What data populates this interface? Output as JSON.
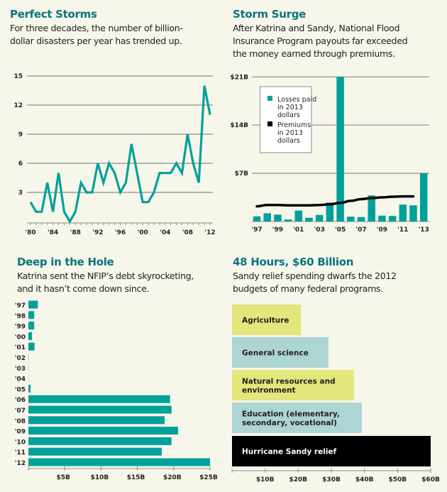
{
  "panels": {
    "perfect_storms": {
      "title": "Perfect Storms",
      "subtitle_lines": [
        "For three decades, the number of billion-",
        "dollar disasters per year has trended up."
      ]
    },
    "storm_surge": {
      "title": "Storm Surge",
      "subtitle_lines": [
        "After Katrina and Sandy, National Flood",
        "Insurance Program payouts far exceeded",
        "the money earned through premiums."
      ]
    },
    "deep_in_hole": {
      "title": "Deep in the Hole",
      "subtitle_lines": [
        "Katrina sent the NFIP’s debt skyrocketing,",
        "and it hasn’t come down since."
      ]
    },
    "sandy": {
      "title": "48 Hours, $60 Billion",
      "subtitle_lines": [
        "Sandy relief spending dwarfs the 2012",
        "budgets of many federal programs."
      ]
    }
  },
  "colors": {
    "teal": "#00a19a",
    "title": "#0b7480",
    "grid": "#8f8d84",
    "black": "#000000",
    "yellow": "#e3e67a",
    "lightblue": "#acd5d4",
    "background": "#f6f6ea"
  },
  "chart_data": [
    {
      "type": "line",
      "title": "Perfect Storms",
      "xlabel": "",
      "ylabel": "Billion-dollar disasters per year",
      "x": [
        1980,
        1981,
        1982,
        1983,
        1984,
        1985,
        1986,
        1987,
        1988,
        1989,
        1990,
        1991,
        1992,
        1993,
        1994,
        1995,
        1996,
        1997,
        1998,
        1999,
        2000,
        2001,
        2002,
        2003,
        2004,
        2005,
        2006,
        2007,
        2008,
        2009,
        2010,
        2011,
        2012
      ],
      "series": [
        {
          "name": "Billion-dollar disasters",
          "values": [
            2,
            1,
            1,
            4,
            1,
            5,
            1,
            0,
            1,
            4,
            3,
            3,
            6,
            4,
            6,
            5,
            3,
            4,
            8,
            5,
            2,
            2,
            3,
            5,
            5,
            5,
            6,
            5,
            9,
            6,
            4,
            14,
            11
          ]
        }
      ],
      "xticks": [
        1980,
        1984,
        1988,
        1992,
        1996,
        2000,
        2004,
        2008,
        2012
      ],
      "xtick_labels": [
        "'80",
        "'84",
        "'88",
        "'92",
        "'96",
        "'00",
        "'04",
        "'08",
        "'12"
      ],
      "yticks": [
        3,
        6,
        9,
        12,
        15
      ],
      "ytick_labels": [
        "3",
        "6",
        "9",
        "12",
        "15"
      ],
      "ylim": [
        0,
        15
      ],
      "grid": true
    },
    {
      "type": "bar",
      "title": "Storm Surge",
      "categories": [
        "1997",
        "1998",
        "1999",
        "2000",
        "2001",
        "2002",
        "2003",
        "2004",
        "2005",
        "2006",
        "2007",
        "2008",
        "2009",
        "2010",
        "2011",
        "2012",
        "2013"
      ],
      "xtick_labels": [
        "'97",
        "'99",
        "'01",
        "'03",
        "'05",
        "'07",
        "'09",
        "'11",
        "'13"
      ],
      "xtick_categories": [
        "1997",
        "1999",
        "2001",
        "2003",
        "2005",
        "2007",
        "2009",
        "2011",
        "2013"
      ],
      "series": [
        {
          "name": "Losses paid in 2013 dollars",
          "kind": "bar",
          "values": [
            0.75,
            1.2,
            1.0,
            0.3,
            1.6,
            0.55,
            0.95,
            2.75,
            21.0,
            0.7,
            0.65,
            3.8,
            0.85,
            0.8,
            2.45,
            2.35,
            7.0
          ]
        },
        {
          "name": "Premiums in 2013 dollars",
          "kind": "line",
          "values": [
            2.2,
            2.4,
            2.4,
            2.35,
            2.35,
            2.35,
            2.4,
            2.5,
            2.7,
            3.0,
            3.25,
            3.4,
            3.5,
            3.6,
            3.65,
            3.65,
            null
          ]
        }
      ],
      "legend": {
        "placement": "top-left",
        "entries": [
          [
            "Losses paid",
            "in 2013",
            "dollars"
          ],
          [
            "Premiums",
            "in 2013",
            "dollars"
          ]
        ]
      },
      "unit": "billions USD",
      "yticks": [
        7,
        14,
        21
      ],
      "ytick_labels": [
        "$7B",
        "$14B",
        "$21B"
      ],
      "ylim": [
        0,
        21
      ],
      "grid": true
    },
    {
      "type": "bar",
      "orientation": "horizontal",
      "title": "Deep in the Hole",
      "categories": [
        "'97",
        "'98",
        "'99",
        "'00",
        "'01",
        "'02",
        "'03",
        "'04",
        "'05",
        "'06",
        "'07",
        "'08",
        "'09",
        "'10",
        "'11",
        "'12"
      ],
      "values": [
        1.3,
        0.8,
        0.8,
        0.5,
        0.85,
        0.05,
        0,
        0,
        0.3,
        19.5,
        19.7,
        18.75,
        20.6,
        19.7,
        18.35,
        25.0
      ],
      "unit": "billions USD",
      "xticks": [
        5,
        10,
        15,
        20,
        25
      ],
      "xtick_labels": [
        "$5B",
        "$10B",
        "$15B",
        "$20B",
        "$25B"
      ],
      "xlim": [
        0,
        25
      ],
      "grid": false
    },
    {
      "type": "bar",
      "orientation": "horizontal",
      "title": "48 Hours, $60 Billion",
      "categories": [
        "Agriculture",
        "General science",
        "Natural resources and environment",
        "Education (elementary, secondary, vocational)",
        "Hurricane Sandy relief"
      ],
      "category_lines": [
        [
          "Agriculture"
        ],
        [
          "General science"
        ],
        [
          "Natural resources and",
          "environment"
        ],
        [
          "Education (elementary,",
          "secondary, vocational)"
        ],
        [
          "Hurricane Sandy relief"
        ]
      ],
      "values": [
        20.8,
        29.1,
        36.8,
        39.2,
        60.0
      ],
      "unit": "billions USD",
      "xticks": [
        10,
        20,
        30,
        40,
        50,
        60
      ],
      "xtick_labels": [
        "$10B",
        "$20B",
        "$30B",
        "$40B",
        "$50B",
        "$60B"
      ],
      "xlim": [
        0,
        60
      ],
      "grid": false
    }
  ]
}
